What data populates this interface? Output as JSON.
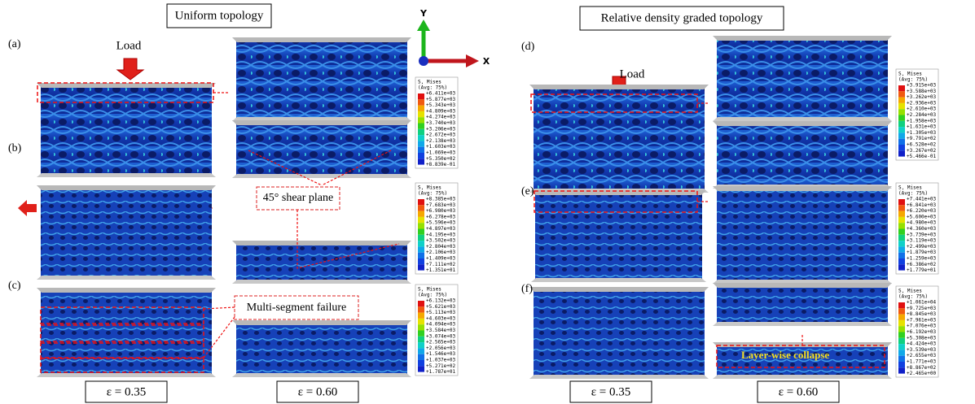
{
  "header": {
    "left_title": "Uniform topology",
    "right_title": "Relative density graded topology"
  },
  "axes": {
    "y": "Y",
    "x": "X"
  },
  "load_labels": [
    "Load",
    "Load"
  ],
  "annotations": {
    "shear": "45° shear plane",
    "multi": "Multi-segment failure",
    "layer": "Layer-wise collapse"
  },
  "strains": [
    "ε = 0.35",
    "ε = 0.60",
    "ε = 0.35",
    "ε = 0.60"
  ],
  "panels": [
    {
      "label": "(a)",
      "legend": {
        "title": "S, Mises",
        "subtitle": "(Avg: 75%)",
        "values": [
          "+6.411e+03",
          "+5.877e+03",
          "+5.343e+03",
          "+4.809e+03",
          "+4.274e+03",
          "+3.740e+03",
          "+3.206e+03",
          "+2.672e+03",
          "+2.138e+03",
          "+1.603e+03",
          "+1.069e+03",
          "+5.350e+02",
          "+8.839e-01"
        ]
      }
    },
    {
      "label": "(b)",
      "legend": {
        "title": "S, Mises",
        "subtitle": "(Avg: 75%)",
        "values": [
          "+8.385e+03",
          "+7.683e+03",
          "+6.980e+03",
          "+6.278e+03",
          "+5.596e+03",
          "+4.897e+03",
          "+4.195e+03",
          "+3.502e+03",
          "+2.804e+03",
          "+2.106e+03",
          "+1.409e+03",
          "+7.111e+02",
          "+1.351e+01"
        ]
      }
    },
    {
      "label": "(c)",
      "legend": {
        "title": "S, Mises",
        "subtitle": "(Avg: 75%)",
        "values": [
          "+6.132e+03",
          "+5.621e+03",
          "+5.113e+03",
          "+4.603e+03",
          "+4.094e+03",
          "+3.584e+03",
          "+3.074e+03",
          "+2.565e+03",
          "+2.056e+03",
          "+1.546e+03",
          "+1.037e+03",
          "+5.271e+02",
          "+1.787e+01"
        ]
      }
    },
    {
      "label": "(d)",
      "legend": {
        "title": "S, Mises",
        "subtitle": "(Avg: 75%)",
        "values": [
          "+3.915e+03",
          "+3.588e+03",
          "+3.262e+03",
          "+2.936e+03",
          "+2.610e+03",
          "+2.284e+03",
          "+1.958e+03",
          "+1.631e+03",
          "+1.305e+03",
          "+9.791e+02",
          "+6.528e+02",
          "+3.267e+02",
          "+5.466e-01"
        ]
      }
    },
    {
      "label": "(e)",
      "legend": {
        "title": "S, Mises",
        "subtitle": "(Avg: 75%)",
        "values": [
          "+7.441e+03",
          "+6.841e+03",
          "+6.220e+03",
          "+5.600e+03",
          "+4.980e+03",
          "+4.360e+03",
          "+3.739e+03",
          "+3.119e+03",
          "+2.499e+03",
          "+1.879e+03",
          "+1.259e+03",
          "+6.386e+02",
          "+1.779e+01"
        ]
      }
    },
    {
      "label": "(f)",
      "legend": {
        "title": "S, Mises",
        "subtitle": "(Avg: 75%)",
        "values": [
          "+1.061e+04",
          "+9.725e+03",
          "+8.845e+03",
          "+7.961e+03",
          "+7.076e+03",
          "+6.192e+03",
          "+5.308e+03",
          "+4.424e+03",
          "+3.539e+03",
          "+2.655e+03",
          "+1.771e+03",
          "+8.867e+02",
          "+2.465e+00"
        ]
      }
    }
  ]
}
